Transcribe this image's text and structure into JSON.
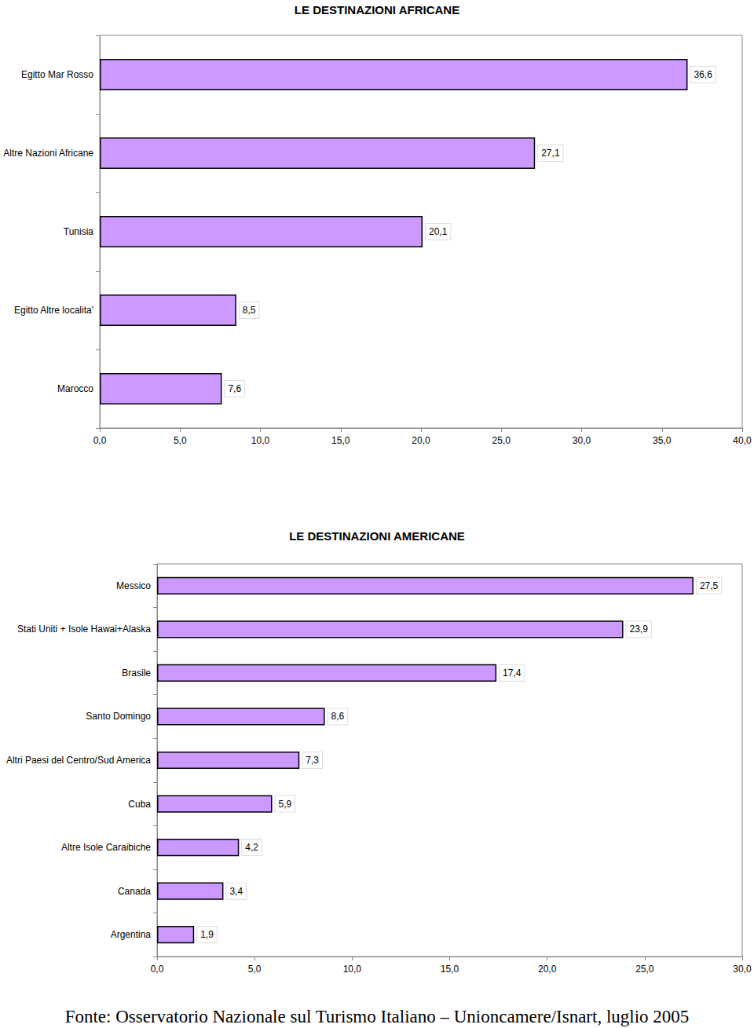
{
  "chart_data": [
    {
      "type": "bar",
      "title": "LE DESTINAZIONI AFRICANE",
      "orientation": "horizontal",
      "categories": [
        "Egitto Mar Rosso",
        "Altre Nazioni Africane",
        "Tunisia",
        "Egitto Altre localita'",
        "Marocco"
      ],
      "values": [
        36.6,
        27.1,
        20.1,
        8.5,
        7.6
      ],
      "value_labels": [
        "36,6",
        "27,1",
        "20,1",
        "8,5",
        "7,6"
      ],
      "color": "#cc99ff",
      "data_labels": true,
      "grid": false,
      "xlim": [
        0,
        40
      ],
      "xticks": [
        {
          "value": 0,
          "label": "0,0"
        },
        {
          "value": 5,
          "label": "5,0"
        },
        {
          "value": 10,
          "label": "10,0"
        },
        {
          "value": 15,
          "label": "15,0"
        },
        {
          "value": 20,
          "label": "20,0"
        },
        {
          "value": 25,
          "label": "25,0"
        },
        {
          "value": 30,
          "label": "30,0"
        },
        {
          "value": 35,
          "label": "35,0"
        },
        {
          "value": 40,
          "label": "40,0"
        }
      ]
    },
    {
      "type": "bar",
      "title": "LE DESTINAZIONI AMERICANE",
      "orientation": "horizontal",
      "categories": [
        "Messico",
        "Stati Uniti + Isole Hawai+Alaska",
        "Brasile",
        "Santo Domingo",
        "Altri Paesi del Centro/Sud America",
        "Cuba",
        "Altre Isole Caraibiche",
        "Canada",
        "Argentina"
      ],
      "values": [
        27.5,
        23.9,
        17.4,
        8.6,
        7.3,
        5.9,
        4.2,
        3.4,
        1.9
      ],
      "value_labels": [
        "27,5",
        "23,9",
        "17,4",
        "8,6",
        "7,3",
        "5,9",
        "4,2",
        "3,4",
        "1,9"
      ],
      "color": "#cc99ff",
      "data_labels": true,
      "grid": false,
      "xlim": [
        0,
        30
      ],
      "xticks": [
        {
          "value": 0,
          "label": "0,0"
        },
        {
          "value": 5,
          "label": "5,0"
        },
        {
          "value": 10,
          "label": "10,0"
        },
        {
          "value": 15,
          "label": "15,0"
        },
        {
          "value": 20,
          "label": "20,0"
        },
        {
          "value": 25,
          "label": "25,0"
        },
        {
          "value": 30,
          "label": "30,0"
        }
      ]
    }
  ],
  "source": "Fonte: Osservatorio Nazionale sul Turismo Italiano – Unioncamere/Isnart, luglio 2005"
}
